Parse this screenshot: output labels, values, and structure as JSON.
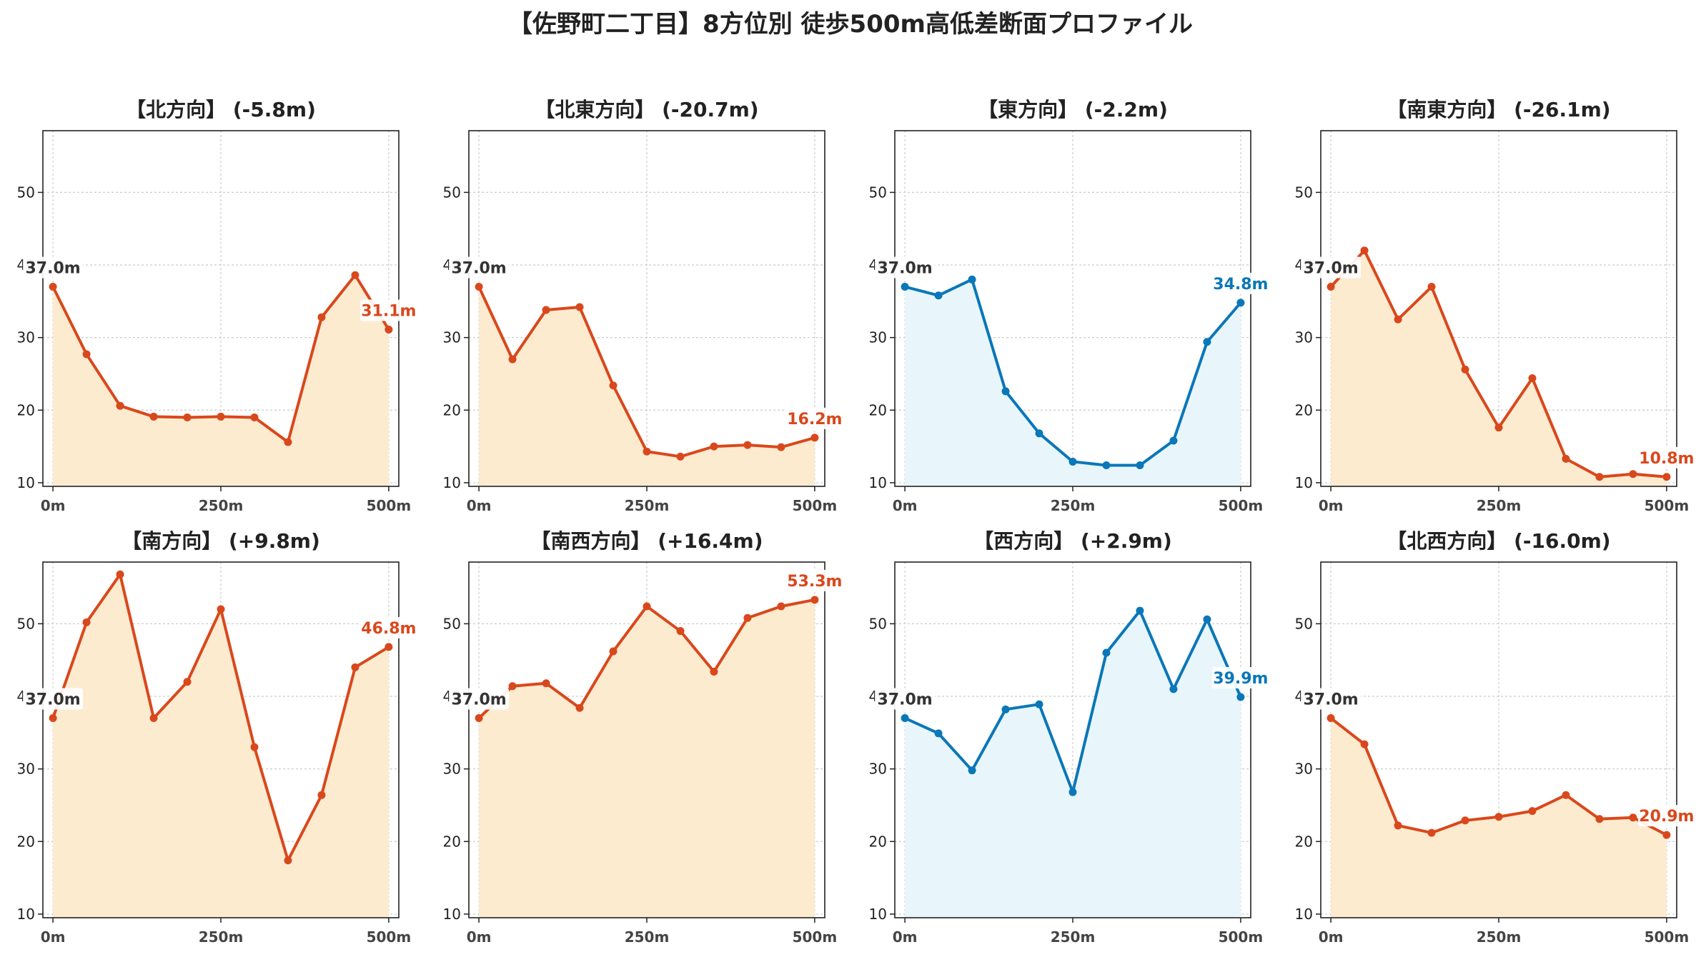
{
  "title": "【佐野町二丁目】8方位別 徒歩500m高低差断面プロファイル",
  "colors": {
    "down": "#d9481c",
    "down_fill": "#fdebd0",
    "flat": "#0a77b8",
    "flat_fill": "#e8f6fc",
    "grid": "#cccccc",
    "start_label": "#333333"
  },
  "chart_data": [
    {
      "type": "line",
      "title": "【北方向】 (-5.8m)",
      "color_scheme": "down",
      "x": [
        0,
        50,
        100,
        150,
        200,
        250,
        300,
        350,
        400,
        450,
        500
      ],
      "values": [
        37.0,
        27.7,
        20.6,
        19.1,
        19.0,
        19.1,
        19.0,
        15.6,
        32.8,
        38.6,
        31.1
      ],
      "start_label": "37.0m",
      "end_label": "31.1m",
      "x_ticks": [
        "0m",
        "250m",
        "500m"
      ],
      "y_ticks": [
        "10",
        "20",
        "30",
        "40",
        "50"
      ],
      "ylim": [
        9.5,
        58.5
      ],
      "grid": true
    },
    {
      "type": "line",
      "title": "【北東方向】 (-20.7m)",
      "color_scheme": "down",
      "x": [
        0,
        50,
        100,
        150,
        200,
        250,
        300,
        350,
        400,
        450,
        500
      ],
      "values": [
        37.0,
        27.0,
        33.8,
        34.2,
        23.4,
        14.3,
        13.6,
        15.0,
        15.2,
        14.9,
        16.2
      ],
      "start_label": "37.0m",
      "end_label": "16.2m",
      "x_ticks": [
        "0m",
        "250m",
        "500m"
      ],
      "y_ticks": [
        "10",
        "20",
        "30",
        "40",
        "50"
      ],
      "ylim": [
        9.5,
        58.5
      ],
      "grid": true
    },
    {
      "type": "line",
      "title": "【東方向】 (-2.2m)",
      "color_scheme": "flat",
      "x": [
        0,
        50,
        100,
        150,
        200,
        250,
        300,
        350,
        400,
        450,
        500
      ],
      "values": [
        37.0,
        35.8,
        38.0,
        22.6,
        16.8,
        12.9,
        12.4,
        12.4,
        15.8,
        29.4,
        34.8
      ],
      "start_label": "37.0m",
      "end_label": "34.8m",
      "x_ticks": [
        "0m",
        "250m",
        "500m"
      ],
      "y_ticks": [
        "10",
        "20",
        "30",
        "40",
        "50"
      ],
      "ylim": [
        9.5,
        58.5
      ],
      "grid": true
    },
    {
      "type": "line",
      "title": "【南東方向】 (-26.1m)",
      "color_scheme": "down",
      "x": [
        0,
        50,
        100,
        150,
        200,
        250,
        300,
        350,
        400,
        450,
        500
      ],
      "values": [
        37.0,
        42.0,
        32.5,
        37.0,
        25.6,
        17.6,
        24.4,
        13.3,
        10.8,
        11.2,
        10.8
      ],
      "start_label": "37.0m",
      "end_label": "10.8m",
      "x_ticks": [
        "0m",
        "250m",
        "500m"
      ],
      "y_ticks": [
        "10",
        "20",
        "30",
        "40",
        "50"
      ],
      "ylim": [
        9.5,
        58.5
      ],
      "grid": true
    },
    {
      "type": "line",
      "title": "【南方向】 (+9.8m)",
      "color_scheme": "down",
      "x": [
        0,
        50,
        100,
        150,
        200,
        250,
        300,
        350,
        400,
        450,
        500
      ],
      "values": [
        37.0,
        50.2,
        56.8,
        37.0,
        42.0,
        52.0,
        33.0,
        17.4,
        26.4,
        44.0,
        46.8
      ],
      "start_label": "37.0m",
      "end_label": "46.8m",
      "x_ticks": [
        "0m",
        "250m",
        "500m"
      ],
      "y_ticks": [
        "10",
        "20",
        "30",
        "40",
        "50"
      ],
      "ylim": [
        9.5,
        58.5
      ],
      "grid": true
    },
    {
      "type": "line",
      "title": "【南西方向】 (+16.4m)",
      "color_scheme": "down",
      "x": [
        0,
        50,
        100,
        150,
        200,
        250,
        300,
        350,
        400,
        450,
        500
      ],
      "values": [
        37.0,
        41.4,
        41.8,
        38.4,
        46.2,
        52.4,
        49.0,
        43.4,
        50.8,
        52.4,
        53.3
      ],
      "start_label": "37.0m",
      "end_label": "53.3m",
      "x_ticks": [
        "0m",
        "250m",
        "500m"
      ],
      "y_ticks": [
        "10",
        "20",
        "30",
        "40",
        "50"
      ],
      "ylim": [
        9.5,
        58.5
      ],
      "grid": true
    },
    {
      "type": "line",
      "title": "【西方向】 (+2.9m)",
      "color_scheme": "flat",
      "x": [
        0,
        50,
        100,
        150,
        200,
        250,
        300,
        350,
        400,
        450,
        500
      ],
      "values": [
        37.0,
        34.9,
        29.8,
        38.2,
        38.9,
        26.8,
        46.0,
        51.8,
        41.0,
        50.6,
        39.9
      ],
      "start_label": "37.0m",
      "end_label": "39.9m",
      "x_ticks": [
        "0m",
        "250m",
        "500m"
      ],
      "y_ticks": [
        "10",
        "20",
        "30",
        "40",
        "50"
      ],
      "ylim": [
        9.5,
        58.5
      ],
      "grid": true
    },
    {
      "type": "line",
      "title": "【北西方向】 (-16.0m)",
      "color_scheme": "down",
      "x": [
        0,
        50,
        100,
        150,
        200,
        250,
        300,
        350,
        400,
        450,
        500
      ],
      "values": [
        37.0,
        33.4,
        22.2,
        21.2,
        22.9,
        23.4,
        24.2,
        26.4,
        23.1,
        23.3,
        20.9
      ],
      "start_label": "37.0m",
      "end_label": "20.9m",
      "x_ticks": [
        "0m",
        "250m",
        "500m"
      ],
      "y_ticks": [
        "10",
        "20",
        "30",
        "40",
        "50"
      ],
      "ylim": [
        9.5,
        58.5
      ],
      "grid": true
    }
  ]
}
